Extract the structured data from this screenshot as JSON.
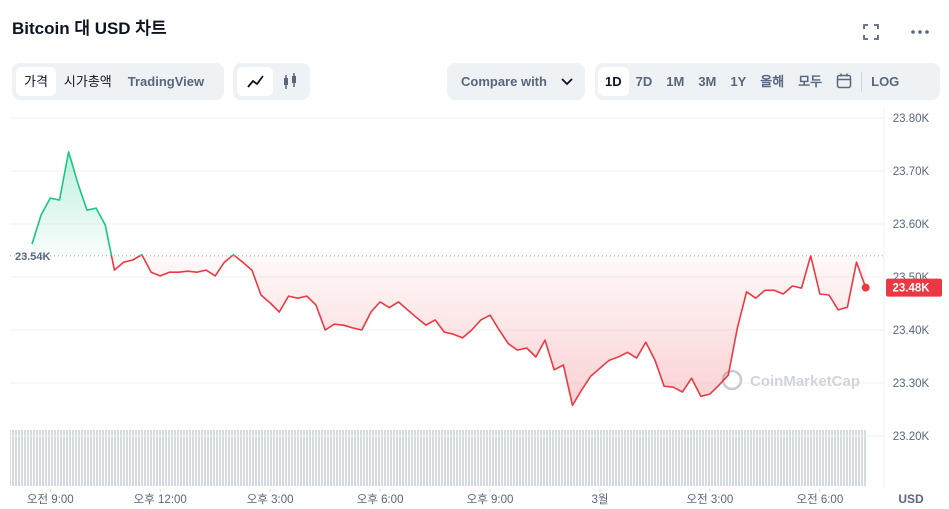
{
  "header": {
    "title": "Bitcoin 대 USD 차트",
    "tabs": [
      "가격",
      "시가총액",
      "TradingView"
    ],
    "active_tab": 0,
    "compare": "Compare with",
    "ranges": [
      "1D",
      "7D",
      "1M",
      "3M",
      "1Y",
      "올해",
      "모두"
    ],
    "active_range": 0,
    "log": "LOG"
  },
  "chart_data": {
    "type": "line",
    "x": [
      8.5,
      8.75,
      9,
      9.25,
      9.5,
      9.75,
      10,
      10.25,
      10.5,
      10.75,
      11,
      11.25,
      11.5,
      11.75,
      12,
      12.25,
      12.5,
      12.75,
      13,
      13.25,
      13.5,
      13.75,
      14,
      14.25,
      14.5,
      14.75,
      15,
      15.25,
      15.5,
      15.75,
      16,
      16.25,
      16.5,
      16.75,
      17,
      17.25,
      17.5,
      17.75,
      18,
      18.25,
      18.5,
      18.75,
      19,
      19.25,
      19.5,
      19.75,
      20,
      20.25,
      20.5,
      20.75,
      21,
      21.25,
      21.5,
      21.75,
      22,
      22.25,
      22.5,
      22.75,
      23,
      23.25,
      23.5,
      23.75,
      24,
      24.25,
      24.5,
      24.75,
      25,
      25.25,
      25.5,
      25.75,
      26,
      26.25,
      26.5,
      26.75,
      27,
      27.25,
      27.5,
      27.75,
      28,
      28.25,
      28.5,
      28.75,
      29,
      29.25,
      29.5,
      29.75,
      30,
      30.25,
      30.5,
      30.75,
      31,
      31.25
    ],
    "values": [
      23562,
      23617,
      23649,
      23645,
      23736,
      23677,
      23626,
      23630,
      23598,
      23513,
      23528,
      23532,
      23542,
      23509,
      23502,
      23509,
      23509,
      23511,
      23509,
      23513,
      23502,
      23528,
      23542,
      23528,
      23513,
      23466,
      23451,
      23434,
      23464,
      23460,
      23464,
      23447,
      23400,
      23411,
      23409,
      23404,
      23400,
      23434,
      23453,
      23442,
      23453,
      23438,
      23423,
      23409,
      23419,
      23396,
      23392,
      23385,
      23400,
      23419,
      23428,
      23400,
      23374,
      23362,
      23366,
      23349,
      23381,
      23325,
      23334,
      23258,
      23287,
      23313,
      23328,
      23343,
      23349,
      23358,
      23347,
      23377,
      23343,
      23294,
      23292,
      23283,
      23309,
      23275,
      23279,
      23296,
      23315,
      23404,
      23472,
      23460,
      23475,
      23475,
      23468,
      23483,
      23479,
      23540,
      23468,
      23466,
      23438,
      23443,
      23528,
      23480
    ],
    "color_above": "#16c784",
    "color_below": "#ea3943",
    "reference": {
      "value": 23540,
      "label": "23.54K"
    },
    "current_price": {
      "value": 23480,
      "label": "23.48K"
    },
    "xlim": [
      7.9,
      31.75
    ],
    "xticks": [
      {
        "value": 9,
        "label": "오전 9:00"
      },
      {
        "value": 12,
        "label": "오후 12:00"
      },
      {
        "value": 15,
        "label": "오후 3:00"
      },
      {
        "value": 18,
        "label": "오후 6:00"
      },
      {
        "value": 21,
        "label": "오후 9:00"
      },
      {
        "value": 24,
        "label": "3월"
      },
      {
        "value": 27,
        "label": "오전 3:00"
      },
      {
        "value": 30,
        "label": "오전 6:00"
      }
    ],
    "ylim": [
      23100,
      23800
    ],
    "yticks": [
      {
        "value": 23200,
        "label": "23.20K"
      },
      {
        "value": 23300,
        "label": "23.30K"
      },
      {
        "value": 23400,
        "label": "23.40K"
      },
      {
        "value": 23500,
        "label": "23.50K"
      },
      {
        "value": 23600,
        "label": "23.60K"
      },
      {
        "value": 23700,
        "label": "23.70K"
      },
      {
        "value": 23800,
        "label": "23.80K"
      }
    ],
    "grid": true,
    "y_unit": "USD",
    "watermark": "CoinMarketCap"
  }
}
